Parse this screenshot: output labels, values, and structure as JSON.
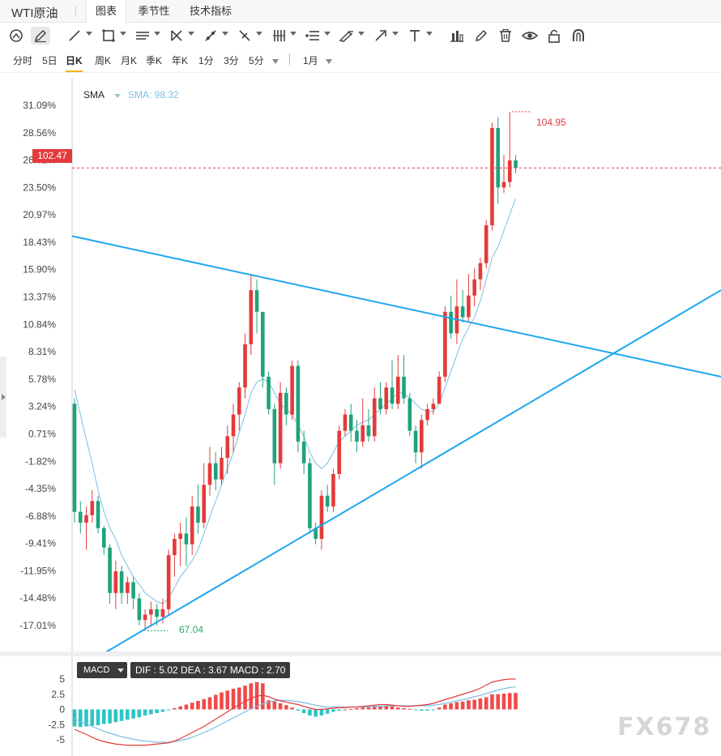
{
  "window": {
    "title": "WTI原油",
    "tabs": [
      {
        "label": "图表",
        "active": true
      },
      {
        "label": "季节性",
        "active": false
      },
      {
        "label": "技术指标",
        "active": false
      }
    ]
  },
  "toolbar": {
    "tools": [
      "magnet-icon",
      "pencil-icon",
      "line-icon",
      "rectangle-icon",
      "parallel-lines-icon",
      "cross-lines-icon",
      "trend-tool-icon",
      "fib-icon",
      "bars-icon",
      "list-lines-icon",
      "brush-icon",
      "arrow-icon",
      "text-icon",
      "bar-chart-icon",
      "pen-icon",
      "trash-icon",
      "eye-icon",
      "lock-icon",
      "magnet-u-icon"
    ]
  },
  "periods": {
    "items": [
      "分时",
      "5日",
      "日K",
      "周K",
      "月K",
      "季K",
      "年K",
      "1分",
      "3分",
      "5分"
    ],
    "active": "日K",
    "range": "1月"
  },
  "indicator": {
    "sma_name": "SMA",
    "sma_value": "SMA: 98.32"
  },
  "markers": {
    "last_price": "102.47",
    "high": "104.95",
    "low": "67.04"
  },
  "macd_panel": {
    "name": "MACD",
    "values": "DIF : 5.02  DEA : 3.67  MACD : 2.70"
  },
  "watermark": "FX678",
  "colors": {
    "up": "#e43a3a",
    "down": "#1ea37a",
    "sma": "#7cbfe0",
    "trendline": "#1da7f0",
    "dif": "#e43a3a",
    "dea": "#7cbfe0",
    "macd_up": "#f04a4a",
    "macd_down": "#2ec4c4"
  },
  "chart_data": {
    "type": "candlestick",
    "y_ticks": [
      "31.09%",
      "28.56%",
      "26.02%",
      "23.50%",
      "20.97%",
      "18.43%",
      "15.90%",
      "13.37%",
      "10.84%",
      "8.31%",
      "5.78%",
      "3.24%",
      "0.71%",
      "-1.82%",
      "-4.35%",
      "-6.88%",
      "-9.41%",
      "-11.95%",
      "-14.48%",
      "-17.01%"
    ],
    "ylim_percent": [
      -17.01,
      31.09
    ],
    "candles": [
      [
        3.5,
        -6.5,
        4.0,
        -7.5
      ],
      [
        -6.5,
        -7.5,
        -5.5,
        -8.5
      ],
      [
        -7.5,
        -6.8,
        -6.0,
        -10.0
      ],
      [
        -6.8,
        -5.5,
        -4.5,
        -7.5
      ],
      [
        -5.5,
        -8.0,
        -5.0,
        -8.5
      ],
      [
        -8.0,
        -9.8,
        -7.8,
        -10.5
      ],
      [
        -9.8,
        -14.0,
        -9.5,
        -15.0
      ],
      [
        -14.0,
        -12.0,
        -11.0,
        -15.5
      ],
      [
        -12.0,
        -14.0,
        -11.5,
        -15.0
      ],
      [
        -14.0,
        -13.0,
        -12.5,
        -15.0
      ],
      [
        -13.0,
        -14.5,
        -12.5,
        -15.5
      ],
      [
        -14.5,
        -16.5,
        -14.0,
        -17.0
      ],
      [
        -16.5,
        -16.0,
        -15.5,
        -17.5
      ],
      [
        -16.0,
        -15.5,
        -14.8,
        -17.0
      ],
      [
        -15.5,
        -16.2,
        -15.0,
        -17.0
      ],
      [
        -16.2,
        -15.5,
        -14.5,
        -16.8
      ],
      [
        -15.5,
        -10.5,
        -10.0,
        -16.0
      ],
      [
        -10.5,
        -9.0,
        -8.5,
        -12.5
      ],
      [
        -9.0,
        -8.5,
        -7.5,
        -11.5
      ],
      [
        -8.5,
        -9.5,
        -7.0,
        -11.5
      ],
      [
        -9.5,
        -6.0,
        -5.0,
        -10.5
      ],
      [
        -6.0,
        -7.5,
        -4.0,
        -8.5
      ],
      [
        -7.5,
        -4.0,
        -2.0,
        -8.0
      ],
      [
        -4.0,
        -2.0,
        -0.5,
        -5.0
      ],
      [
        -2.0,
        -3.5,
        -1.0,
        -4.5
      ],
      [
        -3.5,
        -1.5,
        -0.5,
        -4.0
      ],
      [
        -1.5,
        0.5,
        1.5,
        -3.0
      ],
      [
        0.5,
        2.5,
        3.5,
        -1.0
      ],
      [
        2.5,
        5.0,
        5.5,
        1.0
      ],
      [
        5.0,
        9.0,
        10.0,
        4.0
      ],
      [
        9.0,
        14.0,
        15.5,
        8.0
      ],
      [
        14.0,
        12.0,
        15.0,
        10.0
      ],
      [
        12.0,
        6.0,
        7.0,
        5.0
      ],
      [
        6.0,
        3.0,
        6.5,
        2.5
      ],
      [
        3.0,
        -2.0,
        3.5,
        -4.0
      ],
      [
        -2.0,
        4.5,
        5.5,
        -2.5
      ],
      [
        4.5,
        2.5,
        5.0,
        1.5
      ],
      [
        2.5,
        7.0,
        7.5,
        2.0
      ],
      [
        7.0,
        0.0,
        7.5,
        -1.0
      ],
      [
        0.0,
        -2.0,
        1.0,
        -3.0
      ],
      [
        -2.0,
        -8.0,
        -1.5,
        -8.5
      ],
      [
        -8.0,
        -9.0,
        -7.5,
        -9.5
      ],
      [
        -9.0,
        -5.0,
        -4.5,
        -10.0
      ],
      [
        -5.0,
        -6.0,
        -4.0,
        -6.5
      ],
      [
        -6.0,
        -3.0,
        -2.5,
        -6.5
      ],
      [
        -3.0,
        1.0,
        1.5,
        -3.5
      ],
      [
        1.0,
        2.5,
        3.0,
        0.5
      ],
      [
        2.5,
        1.0,
        3.5,
        0.0
      ],
      [
        1.0,
        0.0,
        2.0,
        -1.0
      ],
      [
        0.0,
        1.5,
        4.0,
        -0.5
      ],
      [
        1.5,
        0.5,
        3.0,
        0.0
      ],
      [
        0.5,
        4.0,
        5.0,
        0.0
      ],
      [
        4.0,
        3.0,
        5.5,
        2.5
      ],
      [
        3.0,
        5.0,
        5.5,
        2.5
      ],
      [
        5.0,
        3.5,
        7.5,
        3.0
      ],
      [
        3.5,
        6.0,
        8.0,
        3.0
      ],
      [
        6.0,
        4.0,
        8.0,
        3.5
      ],
      [
        4.0,
        1.0,
        4.5,
        0.5
      ],
      [
        1.0,
        -1.0,
        1.5,
        -2.0
      ],
      [
        -1.0,
        2.0,
        2.5,
        -2.5
      ],
      [
        2.0,
        3.0,
        3.5,
        1.5
      ],
      [
        3.0,
        3.5,
        4.0,
        2.5
      ],
      [
        3.5,
        6.0,
        6.5,
        3.5
      ],
      [
        6.0,
        12.0,
        12.5,
        5.5
      ],
      [
        12.0,
        10.0,
        13.5,
        9.5
      ],
      [
        10.0,
        12.5,
        15.0,
        9.0
      ],
      [
        12.5,
        11.5,
        14.0,
        11.0
      ],
      [
        11.5,
        13.5,
        15.5,
        11.0
      ],
      [
        13.5,
        15.0,
        16.0,
        12.5
      ],
      [
        15.0,
        16.5,
        17.0,
        14.0
      ],
      [
        16.5,
        20.0,
        20.5,
        16.0
      ],
      [
        20.0,
        29.0,
        29.5,
        19.5
      ],
      [
        29.0,
        23.5,
        30.0,
        22.0
      ],
      [
        23.5,
        24.0,
        26.5,
        23.0
      ],
      [
        24.0,
        26.0,
        30.5,
        23.5
      ],
      [
        26.0,
        25.3,
        26.5,
        24.8
      ]
    ],
    "sma": [
      4.8,
      2.5,
      0.2,
      -2.0,
      -4.5,
      -6.5,
      -8.0,
      -9.0,
      -10.5,
      -11.5,
      -12.5,
      -13.2,
      -14.0,
      -14.4,
      -14.8,
      -15.0,
      -14.5,
      -13.5,
      -12.5,
      -11.8,
      -11.0,
      -10.0,
      -8.5,
      -7.0,
      -5.5,
      -4.0,
      -2.5,
      -1.0,
      0.8,
      2.5,
      4.5,
      5.5,
      5.8,
      5.5,
      4.5,
      3.5,
      3.0,
      2.5,
      1.5,
      0.5,
      -1.0,
      -2.0,
      -2.5,
      -2.0,
      -1.0,
      0.0,
      0.5,
      1.0,
      1.5,
      1.8,
      2.0,
      2.5,
      3.0,
      3.5,
      4.0,
      4.5,
      4.5,
      4.0,
      3.5,
      3.0,
      2.8,
      2.8,
      3.5,
      5.0,
      6.5,
      8.0,
      9.5,
      10.5,
      11.5,
      13.0,
      15.0,
      17.0,
      18.0,
      19.5,
      21.0,
      22.5
    ]
  },
  "macd_data": {
    "ylim": [
      -6.5,
      6
    ],
    "y_ticks": [
      "5",
      "2.5",
      "0",
      "-2.5",
      "-5"
    ],
    "y_tick_values": [
      5,
      2.5,
      0,
      -2.5,
      -5
    ],
    "hist": [
      -2.8,
      -2.9,
      -2.8,
      -2.7,
      -2.6,
      -2.4,
      -2.3,
      -2.1,
      -1.9,
      -1.7,
      -1.5,
      -1.3,
      -1.0,
      -0.8,
      -0.6,
      -0.4,
      -0.1,
      0.2,
      0.5,
      0.8,
      1.1,
      1.4,
      1.7,
      2.0,
      2.4,
      2.8,
      3.1,
      3.4,
      3.6,
      3.9,
      4.3,
      4.5,
      4.3,
      1.5,
      1.3,
      1.0,
      0.7,
      0.3,
      -0.2,
      -0.6,
      -1.0,
      -1.2,
      -1.0,
      -0.7,
      -0.4,
      -0.2,
      0.0,
      0.1,
      0.2,
      0.3,
      0.4,
      0.5,
      0.6,
      0.6,
      0.5,
      0.3,
      0.2,
      0.1,
      -0.1,
      -0.2,
      -0.2,
      -0.1,
      0.3,
      0.8,
      1.0,
      1.2,
      1.3,
      1.5,
      1.6,
      1.8,
      2.0,
      2.5,
      2.5,
      2.6,
      2.7,
      2.7
    ],
    "dif": [
      -3.3,
      -3.7,
      -4.1,
      -4.6,
      -5.0,
      -5.3,
      -5.5,
      -5.7,
      -5.8,
      -5.9,
      -5.9,
      -5.9,
      -5.9,
      -5.8,
      -5.7,
      -5.6,
      -5.5,
      -5.2,
      -4.8,
      -4.3,
      -3.8,
      -3.3,
      -2.8,
      -2.2,
      -1.6,
      -1.0,
      -0.4,
      0.2,
      0.8,
      1.3,
      1.8,
      2.2,
      2.3,
      2.1,
      1.7,
      1.4,
      1.2,
      1.0,
      0.8,
      0.5,
      0.2,
      0.0,
      0.0,
      0.1,
      0.2,
      0.3,
      0.3,
      0.4,
      0.4,
      0.5,
      0.6,
      0.7,
      0.8,
      0.8,
      0.7,
      0.6,
      0.5,
      0.5,
      0.6,
      0.7,
      0.8,
      1.0,
      1.3,
      1.6,
      1.9,
      2.2,
      2.5,
      2.8,
      3.1,
      3.5,
      4.0,
      4.5,
      4.7,
      4.9,
      5.0,
      5.0
    ],
    "dea": [
      -1.5,
      -2.0,
      -2.4,
      -2.8,
      -3.2,
      -3.6,
      -3.9,
      -4.2,
      -4.5,
      -4.7,
      -4.9,
      -5.1,
      -5.2,
      -5.3,
      -5.4,
      -5.4,
      -5.4,
      -5.3,
      -5.1,
      -4.9,
      -4.6,
      -4.2,
      -3.8,
      -3.4,
      -2.9,
      -2.4,
      -1.9,
      -1.4,
      -0.9,
      -0.4,
      0.1,
      0.5,
      0.9,
      1.2,
      1.4,
      1.5,
      1.5,
      1.4,
      1.3,
      1.1,
      0.9,
      0.7,
      0.5,
      0.4,
      0.4,
      0.4,
      0.4,
      0.4,
      0.4,
      0.4,
      0.4,
      0.5,
      0.5,
      0.6,
      0.6,
      0.6,
      0.6,
      0.6,
      0.6,
      0.6,
      0.6,
      0.7,
      0.8,
      1.0,
      1.2,
      1.4,
      1.6,
      1.8,
      2.1,
      2.3,
      2.6,
      2.9,
      3.2,
      3.4,
      3.6,
      3.7
    ]
  }
}
